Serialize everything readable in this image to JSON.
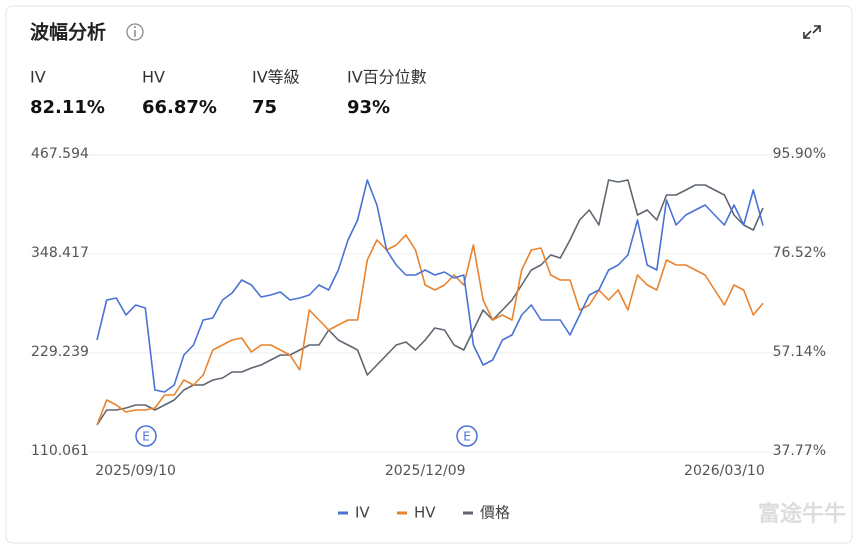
{
  "header": {
    "title": "波幅分析",
    "stats": [
      {
        "label": "IV",
        "value": "82.11%"
      },
      {
        "label": "HV",
        "value": "66.87%"
      },
      {
        "label": "IV等級",
        "value": "75"
      },
      {
        "label": "IV百分位數",
        "value": "93%"
      }
    ]
  },
  "watermark": "富途牛牛",
  "chart_data": {
    "type": "line",
    "categories": [
      null,
      null,
      null,
      null,
      "2025/09/10",
      null,
      null,
      null,
      null,
      null,
      null,
      null,
      null,
      null,
      null,
      null,
      null,
      null,
      null,
      null,
      null,
      null,
      null,
      null,
      null,
      null,
      null,
      null,
      null,
      null,
      null,
      null,
      null,
      null,
      "2025/12/09",
      null,
      null,
      null,
      null,
      null,
      null,
      null,
      null,
      null,
      null,
      null,
      null,
      null,
      null,
      null,
      null,
      null,
      null,
      null,
      null,
      null,
      null,
      null,
      null,
      null,
      null,
      null,
      null,
      null,
      null,
      "2026/03/10",
      null,
      null,
      null,
      null
    ],
    "ylim": [
      110.061,
      467.594
    ],
    "yticks": [
      110.061,
      229.239,
      348.417,
      467.594
    ],
    "y2lim": [
      37.77,
      95.9
    ],
    "y2ticks": [
      {
        "value": 37.77,
        "label": "37.77%"
      },
      {
        "value": 57.14,
        "label": "57.14%"
      },
      {
        "value": 76.52,
        "label": "76.52%"
      },
      {
        "value": 95.9,
        "label": "95.90%"
      }
    ],
    "grid": true,
    "annotations": [
      "E",
      "E"
    ],
    "series": [
      {
        "name": "IV",
        "color": "#4a72d4",
        "axis": "y2",
        "values": [
          59.69,
          67.52,
          67.91,
          64.58,
          66.54,
          65.95,
          49.91,
          49.51,
          50.88,
          56.75,
          58.71,
          63.6,
          64.0,
          67.52,
          68.89,
          71.43,
          70.46,
          68.11,
          68.5,
          69.08,
          67.52,
          67.91,
          68.5,
          70.46,
          69.48,
          73.39,
          79.26,
          83.18,
          91.01,
          86.11,
          77.3,
          74.37,
          72.41,
          72.41,
          73.39,
          72.41,
          73.0,
          71.82,
          72.41,
          58.71,
          54.8,
          55.78,
          59.69,
          60.67,
          64.58,
          66.54,
          63.6,
          63.6,
          63.6,
          60.67,
          64.58,
          68.5,
          69.48,
          73.39,
          74.37,
          76.33,
          83.18,
          74.37,
          73.39,
          87.09,
          82.2,
          84.16,
          85.13,
          86.11,
          84.16,
          82.2,
          86.11,
          82.2,
          89.05,
          82.11
        ]
      },
      {
        "name": "HV",
        "color": "#e8832f",
        "axis": "y2",
        "values": [
          43.05,
          47.95,
          46.97,
          45.6,
          45.99,
          45.99,
          46.38,
          48.93,
          48.93,
          51.87,
          50.89,
          52.84,
          57.73,
          58.71,
          59.69,
          60.08,
          57.34,
          58.71,
          58.71,
          57.73,
          56.75,
          53.82,
          65.56,
          63.6,
          61.65,
          62.63,
          63.6,
          63.6,
          75.35,
          79.26,
          77.3,
          78.28,
          80.24,
          77.3,
          70.46,
          69.48,
          70.46,
          72.41,
          70.46,
          78.28,
          67.52,
          63.6,
          64.58,
          63.6,
          73.39,
          77.3,
          77.7,
          72.41,
          71.43,
          71.43,
          65.56,
          66.54,
          69.48,
          67.52,
          69.48,
          65.56,
          72.41,
          70.46,
          69.48,
          75.35,
          74.37,
          74.37,
          73.39,
          72.41,
          69.48,
          66.54,
          70.46,
          69.48,
          64.58,
          66.87
        ]
      },
      {
        "name": "價格",
        "color": "#5f6670",
        "axis": "y",
        "values": [
          142.56,
          160.62,
          160.62,
          163.03,
          166.64,
          166.64,
          160.62,
          166.64,
          172.66,
          184.7,
          190.72,
          190.72,
          196.73,
          199.14,
          206.37,
          206.37,
          211.18,
          214.79,
          220.81,
          226.83,
          226.83,
          232.85,
          238.87,
          238.87,
          256.92,
          244.89,
          238.87,
          232.85,
          202.75,
          214.79,
          226.83,
          238.87,
          242.48,
          232.85,
          244.89,
          259.33,
          256.92,
          238.87,
          232.85,
          256.92,
          281.0,
          268.96,
          281.0,
          293.04,
          311.1,
          329.15,
          335.17,
          347.21,
          343.6,
          365.27,
          389.34,
          401.38,
          383.32,
          437.49,
          435.09,
          437.49,
          395.36,
          401.38,
          389.34,
          419.44,
          419.44,
          425.46,
          431.48,
          431.48,
          425.46,
          419.44,
          395.36,
          383.32,
          377.3,
          403.79
        ]
      }
    ]
  }
}
